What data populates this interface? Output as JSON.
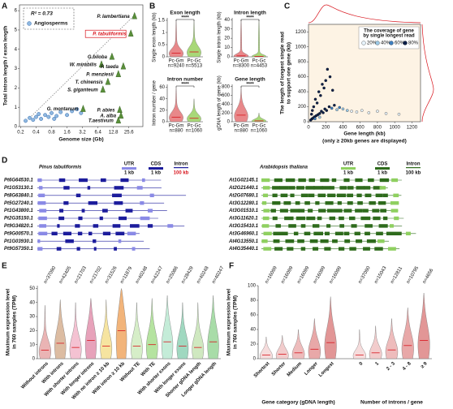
{
  "chart_data": [
    {
      "type": "scatter",
      "panel": "A",
      "xlabel": "Genome size (Gb)",
      "ylabel": [
        "Total intron length / exon length"
      ],
      "x_log_scale": true,
      "xlim": [
        0.19,
        48
      ],
      "xticks": [
        0.2,
        0.4,
        0.8,
        1.6,
        3.2,
        6.4,
        12.8,
        25.6
      ],
      "ylim": [
        0,
        6.3
      ],
      "yticks": [
        0,
        1,
        2,
        3,
        4,
        5,
        6
      ],
      "annotation": "R² = 0.73",
      "trendline": {
        "x": [
          0.3,
          34
        ],
        "y": [
          0.45,
          5.8
        ]
      },
      "series": [
        {
          "name": "Angiosperms",
          "color": "#8fb8e0",
          "x": [
            0.25,
            0.3,
            0.35,
            0.4,
            0.45,
            0.5,
            0.6,
            0.7,
            0.8,
            0.9,
            1.0,
            1.2,
            1.6,
            2.0,
            2.5,
            3.0
          ],
          "values": [
            0.3,
            0.45,
            0.35,
            0.5,
            0.65,
            0.4,
            0.6,
            0.5,
            0.7,
            0.4,
            0.55,
            0.75,
            0.6,
            0.8,
            0.9,
            0.7
          ]
        },
        {
          "color": "#5a8f3a",
          "labels": [
            "P. lambertiana",
            "P. tabuliformis",
            "G.biloba",
            "W. mirabilis",
            "P. taeda",
            "P. menziesii",
            "T. chinensis",
            "S. giganteum",
            "G. montanum",
            "P. abies",
            "A. alba",
            "T.aestivum"
          ],
          "label_colors": [
            "#111",
            "#d8141c",
            "#111",
            "#111",
            "#111",
            "#111",
            "#111",
            "#111",
            "#111",
            "#111",
            "#111",
            "#111"
          ],
          "x": [
            33,
            28,
            12,
            7.5,
            20,
            16,
            10,
            8,
            3.3,
            17,
            18,
            16
          ],
          "values": [
            5.7,
            4.8,
            3.6,
            3.2,
            3.1,
            2.7,
            2.3,
            1.9,
            0.9,
            0.85,
            0.55,
            0.3
          ]
        }
      ]
    },
    {
      "type": "violin",
      "panel": "B",
      "title": "Exon length",
      "ylabel": [
        "Single exon length (kb)"
      ],
      "categories": [
        "Pc-Gm",
        "Pc-Gc"
      ],
      "n_labels": [
        "n=9240",
        "n=5513"
      ],
      "medians": [
        0.15,
        0.2
      ],
      "maxes": [
        1.5,
        1.5
      ],
      "colors": [
        "#e8888a",
        "#a8d878"
      ],
      "ylim": [
        0,
        1.6
      ],
      "yticks": [
        0,
        0.5,
        1,
        1.5
      ],
      "significance": "****"
    },
    {
      "type": "violin",
      "title": "Intron length",
      "ylabel": [
        "Single intron length (kb)"
      ],
      "categories": [
        "Pc-Gm",
        "Pc-Gc"
      ],
      "n_labels": [
        "n=8300",
        "n=4453"
      ],
      "medians": [
        1,
        0.5
      ],
      "maxes": [
        40,
        40
      ],
      "colors": [
        "#e8888a",
        "#a8d878"
      ],
      "ylim": [
        0,
        42
      ],
      "yticks": [
        0,
        10,
        20,
        30,
        40
      ],
      "significance": "****"
    },
    {
      "type": "violin",
      "title": "Intron number",
      "ylabel": [
        "Intron number / gene"
      ],
      "categories": [
        "Pc-Gm",
        "Pc-Gc"
      ],
      "n_labels": [
        "n=880",
        "n=1060"
      ],
      "medians": [
        8,
        6
      ],
      "maxes": [
        60,
        40
      ],
      "colors": [
        "#e8888a",
        "#a8d878"
      ],
      "ylim": [
        0,
        65
      ],
      "yticks": [
        0,
        20,
        40,
        60
      ],
      "significance": "****"
    },
    {
      "type": "violin",
      "title": "Gene length",
      "ylabel": [
        "gDNA length of gene (kb)"
      ],
      "categories": [
        "Pc-Gm",
        "Pc-Gc"
      ],
      "n_labels": [
        "n=880",
        "n=1060"
      ],
      "medians": [
        150,
        20
      ],
      "maxes": [
        800,
        200
      ],
      "colors": [
        "#e8888a",
        "#a8d878"
      ],
      "ylim": [
        0,
        850
      ],
      "yticks": [
        0,
        200,
        400,
        600,
        800
      ],
      "significance": "****"
    },
    {
      "type": "scatter",
      "panel": "C",
      "xlabel": "Gene length (kb)",
      "subtitle": "(only ≥ 20kb genes are displayed)",
      "ylabel": [
        "The length of longest single read",
        "to support one gene (kb)"
      ],
      "xlim": [
        0,
        1300
      ],
      "xticks": [
        0,
        200,
        400,
        600,
        800,
        1000,
        1200
      ],
      "ylim": [
        0,
        1300
      ],
      "yticks": [
        0,
        200,
        400,
        600,
        800,
        1000,
        1200
      ],
      "legend_title": [
        "The coverage of gene",
        "by single longest read"
      ],
      "legend": [
        {
          "value": 20,
          "label": "20%",
          "color": "#e6f2fa"
        },
        {
          "value": 40,
          "label": "40%",
          "color": "#9cc9e6"
        },
        {
          "value": 60,
          "label": "60%",
          "color": "#3f7fbf"
        },
        {
          "value": 80,
          "label": "80%",
          "color": "#0c1f48"
        }
      ],
      "series": [
        {
          "x": [
            25,
            40,
            55,
            70,
            90,
            110,
            130,
            150,
            170,
            190,
            210,
            240,
            270,
            300,
            330,
            360,
            400,
            450,
            500,
            560,
            620,
            700,
            800,
            900,
            1050,
            60,
            80,
            120,
            160,
            200,
            250,
            45,
            100,
            140,
            180,
            35,
            220,
            280,
            75,
            130
          ],
          "values": [
            22,
            38,
            50,
            65,
            80,
            95,
            110,
            140,
            120,
            170,
            150,
            200,
            180,
            220,
            160,
            190,
            170,
            150,
            140,
            130,
            150,
            120,
            140,
            110,
            100,
            200,
            300,
            400,
            500,
            550,
            600,
            150,
            250,
            350,
            450,
            100,
            700,
            420,
            40,
            60
          ]
        }
      ]
    },
    {
      "type": "violin",
      "panel": "E",
      "ylabel": [
        "Maximum expression level",
        "in 760 samples (TPM)"
      ],
      "categories": [
        "Without introns",
        "With introns",
        "With shorter introns",
        "With longer introns",
        "With no intron ≥ 10 kb",
        "With intron ≥ 10 kb",
        "Without TE",
        "With TE",
        "With shorter exons",
        "With longer exons",
        "Shorter gDNA length",
        "Longer gDNA length"
      ],
      "n_labels": [
        "n=37090",
        "n=42405",
        "n=21703",
        "n=21702",
        "n=31526",
        "n=11879",
        "n=40248",
        "n=42247",
        "n=25086",
        "n=28429",
        "n=40248",
        "n=40247"
      ],
      "medians": [
        6,
        11,
        8,
        13,
        9,
        20,
        9,
        10,
        12,
        9,
        8,
        12
      ],
      "maxes": [
        38,
        42,
        40,
        43,
        42,
        50,
        40,
        43,
        45,
        40,
        40,
        45
      ],
      "colors": [
        "#eab4b4",
        "#dcbca2",
        "#f4c2d2",
        "#e7a2ba",
        "#f6e4a0",
        "#f2b47a",
        "#d6eec8",
        "#b5e3a0",
        "#c4ecd8",
        "#a0d8c0",
        "#cfe8c0",
        "#a8dca8"
      ],
      "ylim": [
        0,
        52
      ],
      "yticks": [
        0,
        10,
        20,
        30,
        40,
        50
      ]
    },
    {
      "type": "violin",
      "panel": "F",
      "ylabel": [
        "Maximum expression level",
        "in 760 samples (TPM)"
      ],
      "ylim": [
        0,
        100
      ],
      "yticks": [
        0,
        20,
        40,
        60,
        80,
        100
      ],
      "groups": [
        {
          "label": "Gene category (gDNA length)",
          "categories": [
            "Shortest",
            "Shorter",
            "Medium",
            "Longer",
            "Longest"
          ],
          "n_labels": [
            "n=16099",
            "n=16099",
            "n=16099",
            "n=16099",
            "n=16099"
          ],
          "medians": [
            5,
            6,
            8,
            13,
            22
          ],
          "maxes": [
            30,
            32,
            40,
            55,
            85
          ],
          "colors": [
            "#f6dcdc",
            "#f2cccc",
            "#eebcbc",
            "#e8a8a8",
            "#e29696"
          ]
        },
        {
          "label": "Number of introns / gene",
          "categories": [
            "0",
            "1",
            "2 - 3",
            "4 - 8",
            "≥ 9"
          ],
          "n_labels": [
            "n=37090",
            "n=15043",
            "n=12811",
            "n=10795",
            "n=4656"
          ],
          "medians": [
            5,
            8,
            12,
            18,
            25
          ],
          "maxes": [
            40,
            45,
            55,
            70,
            90
          ],
          "colors": [
            "#f6dcdc",
            "#f2cccc",
            "#eebcbc",
            "#e8a8a8",
            "#e29696"
          ]
        }
      ]
    }
  ],
  "gene_structures": {
    "panel": "D",
    "species": [
      {
        "name": "Pinus tabuliformis",
        "legend": [
          {
            "label": "UTR",
            "scale": "1 kb"
          },
          {
            "label": "CDS",
            "scale": "1 kb"
          },
          {
            "label": "Intron",
            "scale": "100 kb"
          }
        ],
        "genes": [
          "Pt6G64530.1",
          "Pt1G53130.1",
          "Pt8G63840.1",
          "Pt5G27240.1",
          "Pt1G43800.1",
          "Pt2G35150.1",
          "Pt9G34820.1",
          "Pt9G00570.1",
          "Pt1G03930.1",
          "Pt9G57350.1"
        ]
      },
      {
        "name": "Arabidopsis thaliana",
        "legend": [
          {
            "label": "UTR",
            "scale": "1 kb"
          },
          {
            "label": "CDS",
            "scale": "1 kb"
          },
          {
            "label": "Intron",
            "scale": "100 kb"
          }
        ],
        "genes": [
          "At1G02145.1",
          "At2G21440.1",
          "At2G07680.1",
          "At3G12280.1",
          "At3G01510.1",
          "At3G11620.1",
          "At3G15410.1",
          "At3G46960.1",
          "At4G13550.1",
          "At4G35440.1"
        ]
      }
    ]
  }
}
